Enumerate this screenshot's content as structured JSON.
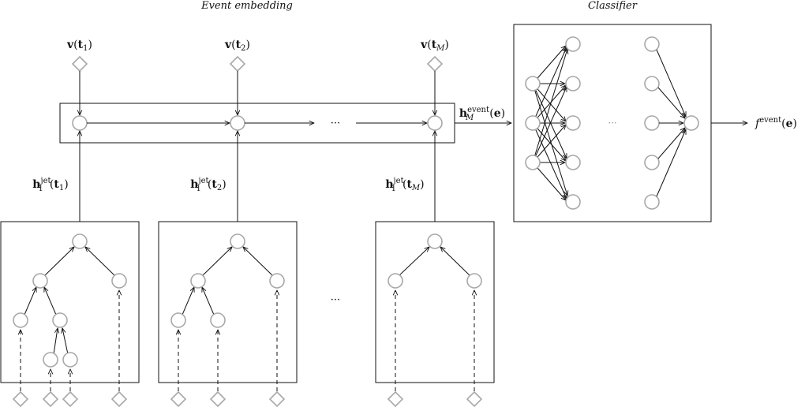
{
  "titles": {
    "event_embedding": "Event embedding",
    "classifier": "Classifier"
  },
  "labels": {
    "v_t1": {
      "bold": "v",
      "open": "(",
      "t": "t",
      "sub": "1",
      "close": ")"
    },
    "v_t2": {
      "bold": "v",
      "open": "(",
      "t": "t",
      "sub": "2",
      "close": ")"
    },
    "v_tM": {
      "bold": "v",
      "open": "(",
      "t": "t",
      "sub": "M",
      "close": ")"
    },
    "h_t1": {
      "bold": "h",
      "sup": "jet",
      "sub": "1",
      "open": "(",
      "t": "t",
      "tsub": "1",
      "close": ")"
    },
    "h_t2": {
      "bold": "h",
      "sup": "jet",
      "sub": "1",
      "open": "(",
      "t": "t",
      "tsub": "2",
      "close": ")"
    },
    "h_tM": {
      "bold": "h",
      "sup": "jet",
      "sub": "1",
      "open": "(",
      "t": "t",
      "tsub": "M",
      "close": ")"
    },
    "h_event": {
      "bold": "h",
      "sup": "event",
      "sub": "M",
      "open": "(",
      "e": "e",
      "close": ")"
    },
    "f_event": {
      "f": "f",
      "sup": "event",
      "open": "(",
      "e": "e",
      "close": ")"
    }
  },
  "ellipses": {
    "sequence": "···",
    "trees": "···",
    "classifier": "···"
  },
  "colors": {
    "node_stroke": "#a8a8a8",
    "line": "#111111"
  }
}
